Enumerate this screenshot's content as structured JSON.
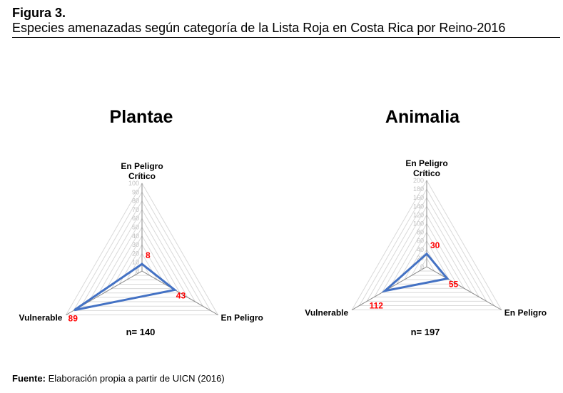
{
  "header": {
    "figure_label": "Figura 3.",
    "title": "Especies amenazadas según categoría de la Lista Roja en Costa Rica por Reino-2016"
  },
  "chart_data": [
    {
      "type": "radar",
      "title": "Plantae",
      "axes": [
        "En Peligro Crítico",
        "En Peligro",
        "Vulnerable"
      ],
      "values": [
        8,
        43,
        89
      ],
      "rlim": [
        0,
        100
      ],
      "tick_step": 10,
      "note": "n= 140",
      "line_color": "#4472C4",
      "label_color": "#FF0000",
      "grid": true
    },
    {
      "type": "radar",
      "title": "Animalia",
      "axes": [
        "En Peligro Crítico",
        "En Peligro",
        "Vulnerable"
      ],
      "values": [
        30,
        55,
        112
      ],
      "rlim": [
        0,
        200
      ],
      "tick_step": 20,
      "note": "n= 197",
      "line_color": "#4472C4",
      "label_color": "#FF0000",
      "grid": true
    }
  ],
  "footer": {
    "source_label": "Fuente:",
    "source_text": " Elaboración propia a partir de UICN (2016)"
  }
}
